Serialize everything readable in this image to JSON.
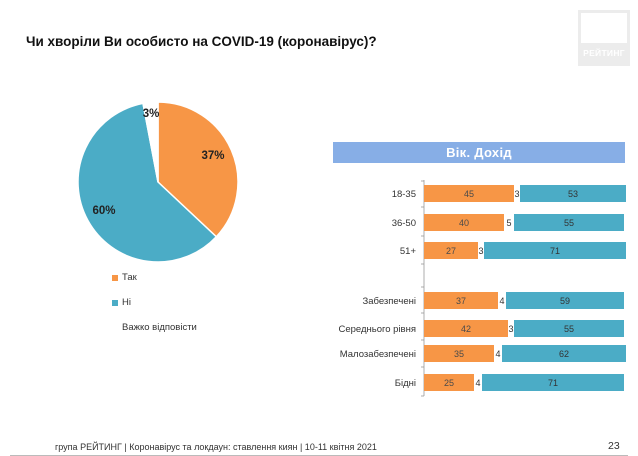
{
  "slide": {
    "title": "Чи хворіли Ви особисто на COVID-19 (коронавірус)?",
    "logo_text": "РЕЙТИНГ",
    "banner": "Вік. Дохід",
    "footer": "група РЕЙТИНГ  | Коронавірус та локдаун: ставлення киян  | 10-11 квітня 2021",
    "page_number": "23"
  },
  "colors": {
    "yes": "#f79646",
    "no": "#4bacc6",
    "hard": "#ffffff",
    "banner": "#87aee6"
  },
  "chart_data": [
    {
      "type": "pie",
      "slices": [
        {
          "name": "Так",
          "value": 37,
          "label": "37%"
        },
        {
          "name": "Ні",
          "value": 60,
          "label": "60%"
        },
        {
          "name": "Важко відповісти",
          "value": 3,
          "label": "3%"
        }
      ]
    },
    {
      "type": "bar",
      "stacked": true,
      "orientation": "horizontal",
      "series": [
        {
          "name": "Так"
        },
        {
          "name": "Важко відповісти"
        },
        {
          "name": "Ні"
        }
      ],
      "groups": [
        {
          "rows": [
            {
              "category": "18-35",
              "values": [
                45,
                3,
                53
              ]
            },
            {
              "category": "36-50",
              "values": [
                40,
                5,
                55
              ]
            },
            {
              "category": "51+",
              "values": [
                27,
                3,
                71
              ]
            }
          ]
        },
        {
          "rows": [
            {
              "category": "Забезпечені",
              "values": [
                37,
                4,
                59
              ]
            },
            {
              "category": "Середнього рівня",
              "values": [
                42,
                3,
                55
              ]
            },
            {
              "category": "Малозабезпечені",
              "values": [
                35,
                4,
                62
              ]
            },
            {
              "category": "Бідні",
              "values": [
                25,
                4,
                71
              ]
            }
          ]
        }
      ]
    }
  ]
}
